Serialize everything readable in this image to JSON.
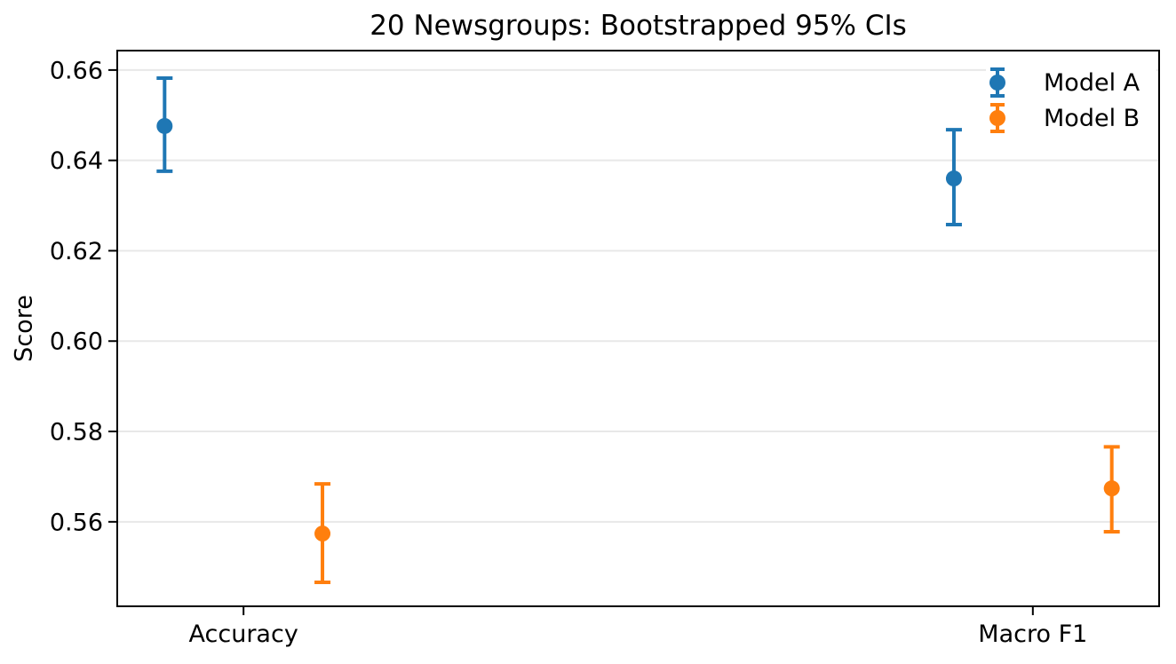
{
  "figure": {
    "background": "#ffffff",
    "axis_color": "#000000",
    "grid_color": "#e8e8e8"
  },
  "chart_data": {
    "type": "errorbar",
    "title": "20 Newsgroups: Bootstrapped 95% CIs",
    "ylabel": "Score",
    "xlabel": "",
    "categories": [
      "Accuracy",
      "Macro F1"
    ],
    "series": [
      {
        "name": "Model A",
        "color": "#1f77b4",
        "x_offset": -0.1,
        "values": [
          0.6476,
          0.636
        ],
        "ci_low": [
          0.6376,
          0.6258
        ],
        "ci_high": [
          0.6582,
          0.6468
        ]
      },
      {
        "name": "Model B",
        "color": "#ff7f0e",
        "x_offset": 0.1,
        "values": [
          0.5574,
          0.5674
        ],
        "ci_low": [
          0.5466,
          0.5578
        ],
        "ci_high": [
          0.5684,
          0.5766
        ]
      }
    ],
    "y_ticks": [
      0.56,
      0.58,
      0.6,
      0.62,
      0.64,
      0.66
    ],
    "y_tick_labels": [
      "0.56",
      "0.58",
      "0.60",
      "0.62",
      "0.64",
      "0.66"
    ],
    "x_tick_positions": [
      0,
      1
    ],
    "ylim": [
      0.5413,
      0.6643
    ],
    "xlim": [
      -0.16,
      1.16
    ],
    "grid": "horizontal",
    "legend_position": "upper right",
    "ci_level": "95%"
  }
}
